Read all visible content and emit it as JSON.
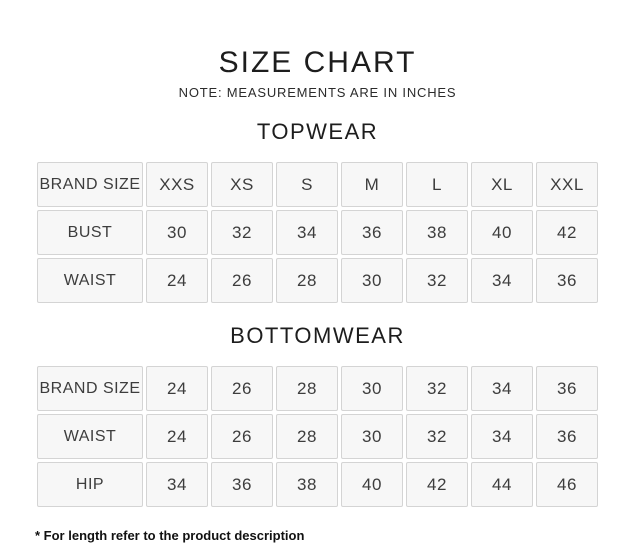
{
  "page": {
    "title": "SIZE CHART",
    "note": "NOTE: MEASUREMENTS ARE IN INCHES",
    "footnote": "* For length refer to the product description"
  },
  "colors": {
    "background": "#ffffff",
    "cell_background": "#f7f7f7",
    "cell_border": "#d4d4d4",
    "heading_text": "#1d1d1d",
    "cell_text": "#3d3d3d",
    "footnote_text": "#111111"
  },
  "sections": [
    {
      "heading": "TOPWEAR",
      "table": {
        "rows": [
          [
            "BRAND SIZE",
            "XXS",
            "XS",
            "S",
            "M",
            "L",
            "XL",
            "XXL"
          ],
          [
            "BUST",
            "30",
            "32",
            "34",
            "36",
            "38",
            "40",
            "42"
          ],
          [
            "WAIST",
            "24",
            "26",
            "28",
            "30",
            "32",
            "34",
            "36"
          ]
        ]
      }
    },
    {
      "heading": "BOTTOMWEAR",
      "table": {
        "rows": [
          [
            "BRAND SIZE",
            "24",
            "26",
            "28",
            "30",
            "32",
            "34",
            "36"
          ],
          [
            "WAIST",
            "24",
            "26",
            "28",
            "30",
            "32",
            "34",
            "36"
          ],
          [
            "HIP",
            "34",
            "36",
            "38",
            "40",
            "42",
            "44",
            "46"
          ]
        ]
      }
    }
  ]
}
